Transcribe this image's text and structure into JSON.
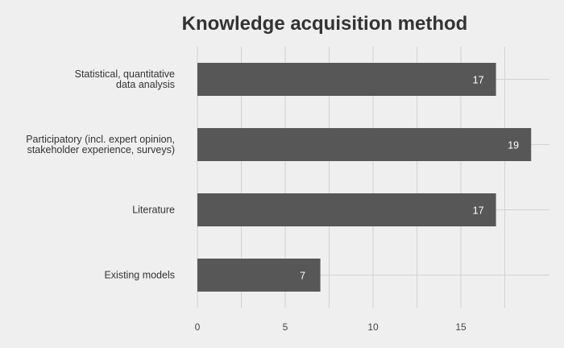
{
  "colors": {
    "background": "#efefef",
    "bar": "#575757",
    "grid": "#d2d2d2",
    "text": "#333333",
    "data_label": "#ffffff"
  },
  "chart_data": {
    "type": "bar",
    "orientation": "horizontal",
    "title": "Knowledge acquisition method",
    "xlabel": "",
    "ylabel": "",
    "categories": [
      [
        "Statistical, quantitative",
        "data analysis"
      ],
      [
        "Participatory (incl. expert opinion,",
        "stakeholder experience, surveys)"
      ],
      [
        "Literature"
      ],
      [
        "Existing models"
      ]
    ],
    "values": [
      17,
      19,
      17,
      7
    ],
    "xlim": [
      0,
      20
    ],
    "xticks": [
      0,
      5,
      10,
      15
    ],
    "grid": true,
    "legend": "none",
    "data_labels": true
  }
}
